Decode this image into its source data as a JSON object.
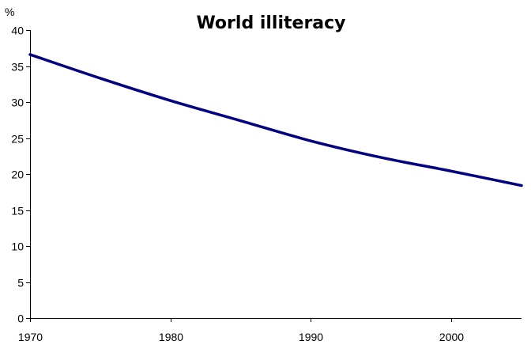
{
  "chart_data": {
    "type": "line",
    "title": "World illiteracy",
    "ylabel": "%",
    "xlabel": "",
    "xlim": [
      1970,
      2005
    ],
    "ylim": [
      0,
      40
    ],
    "x_ticks": [
      1970,
      1980,
      1990,
      2000
    ],
    "y_ticks": [
      0,
      5,
      10,
      15,
      20,
      25,
      30,
      35,
      40
    ],
    "grid": false,
    "legend": "none",
    "series": [
      {
        "color": "#000080",
        "x": [
          1970,
          1975,
          1980,
          1985,
          1990,
          1995,
          2000,
          2005
        ],
        "values": [
          36.6,
          33.3,
          30.2,
          27.4,
          24.6,
          22.3,
          20.4,
          18.4
        ]
      }
    ]
  }
}
